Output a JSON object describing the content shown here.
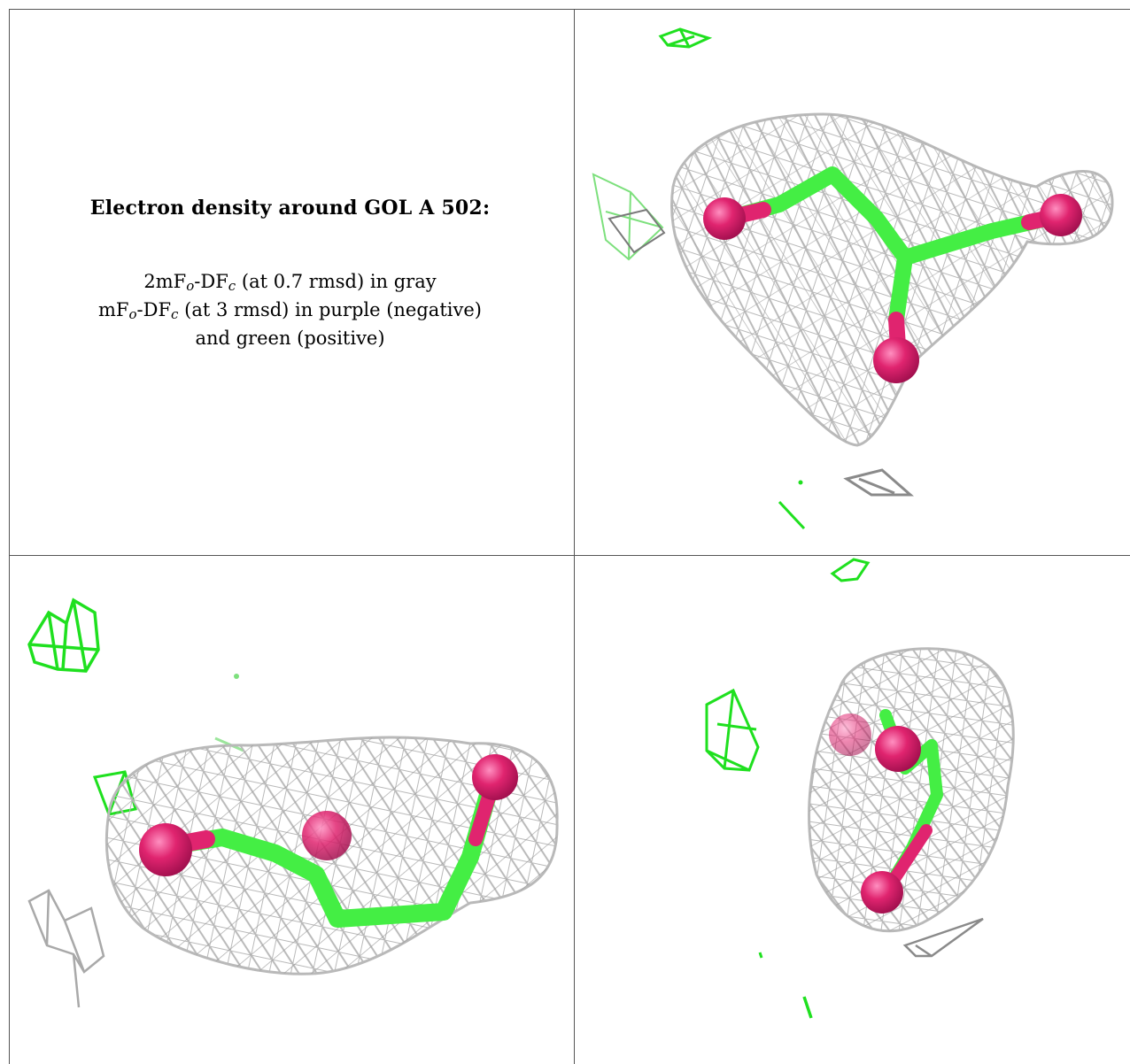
{
  "caption": {
    "title": "Electron density around GOL A 502:",
    "line1": {
      "pre": "2mF",
      "sub1": "o",
      "mid": "-DF",
      "sub2": "c",
      "post": " (at 0.7 rmsd) in gray"
    },
    "line2": {
      "pre": "mF",
      "sub1": "o",
      "mid": "-DF",
      "sub2": "c",
      "post": " (at 3 rmsd) in purple (negative)"
    },
    "line3": "and green (positive)"
  },
  "colors": {
    "mesh_gray": "#b9b9b9",
    "positive_green": "#1fe01f",
    "carbon_green": "#44ee44",
    "oxygen_pink": "#d9186c",
    "grid_line": "#555555"
  }
}
